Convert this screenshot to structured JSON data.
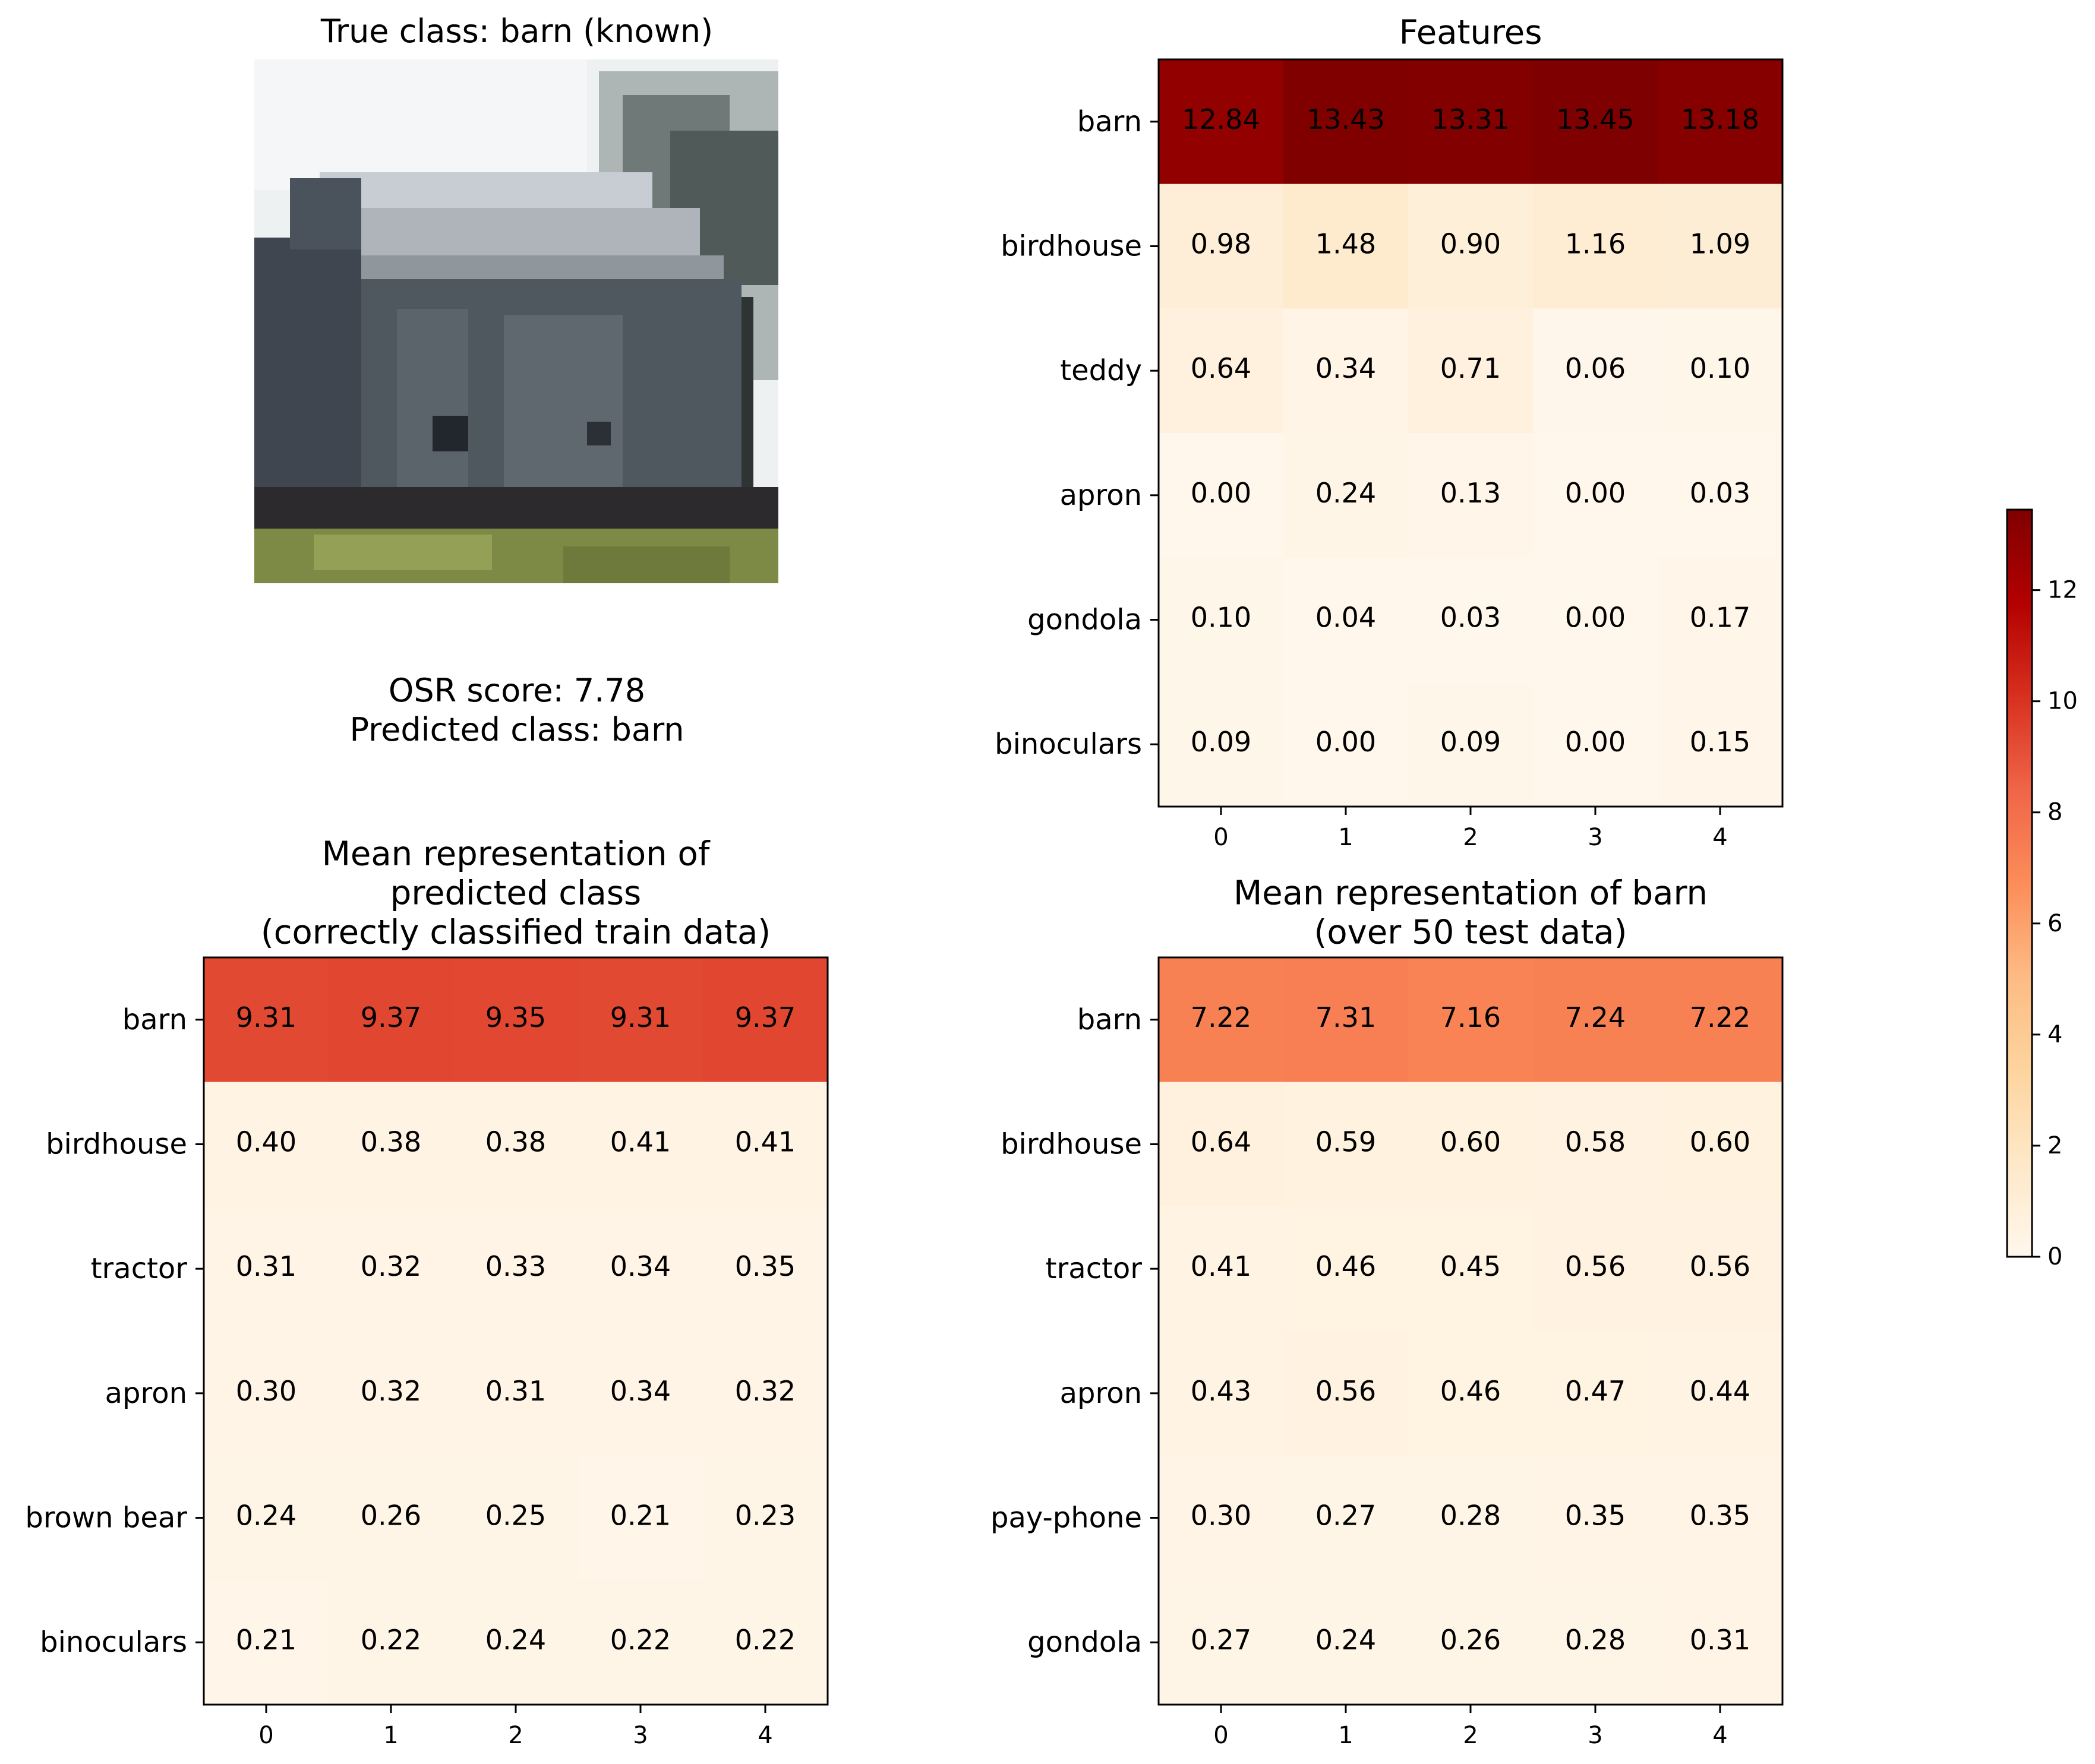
{
  "image_panel": {
    "title": "True class: barn (known)",
    "osr_line": "OSR score: 7.78",
    "pred_line": "Predicted class: barn"
  },
  "colormap": "OrRd",
  "colorbar": {
    "range": [
      0,
      13.45
    ],
    "ticks": [
      0,
      2,
      4,
      6,
      8,
      10,
      12
    ]
  },
  "chart_data": [
    {
      "type": "heatmap",
      "title": "Features",
      "x": [
        "0",
        "1",
        "2",
        "3",
        "4"
      ],
      "y": [
        "barn",
        "birdhouse",
        "teddy",
        "apron",
        "gondola",
        "binoculars"
      ],
      "values": [
        [
          12.84,
          13.43,
          13.31,
          13.45,
          13.18
        ],
        [
          0.98,
          1.48,
          0.9,
          1.16,
          1.09
        ],
        [
          0.64,
          0.34,
          0.71,
          0.06,
          0.1
        ],
        [
          0.0,
          0.24,
          0.13,
          0.0,
          0.03
        ],
        [
          0.1,
          0.04,
          0.03,
          0.0,
          0.17
        ],
        [
          0.09,
          0.0,
          0.09,
          0.0,
          0.15
        ]
      ]
    },
    {
      "type": "heatmap",
      "title": "Mean representation of\npredicted class\n(correctly classified train data)",
      "x": [
        "0",
        "1",
        "2",
        "3",
        "4"
      ],
      "y": [
        "barn",
        "birdhouse",
        "tractor",
        "apron",
        "brown bear",
        "binoculars"
      ],
      "values": [
        [
          9.31,
          9.37,
          9.35,
          9.31,
          9.37
        ],
        [
          0.4,
          0.38,
          0.38,
          0.41,
          0.41
        ],
        [
          0.31,
          0.32,
          0.33,
          0.34,
          0.35
        ],
        [
          0.3,
          0.32,
          0.31,
          0.34,
          0.32
        ],
        [
          0.24,
          0.26,
          0.25,
          0.21,
          0.23
        ],
        [
          0.21,
          0.22,
          0.24,
          0.22,
          0.22
        ]
      ]
    },
    {
      "type": "heatmap",
      "title": "Mean representation of barn\n(over 50 test data)",
      "x": [
        "0",
        "1",
        "2",
        "3",
        "4"
      ],
      "y": [
        "barn",
        "birdhouse",
        "tractor",
        "apron",
        "pay-phone",
        "gondola"
      ],
      "values": [
        [
          7.22,
          7.31,
          7.16,
          7.24,
          7.22
        ],
        [
          0.64,
          0.59,
          0.6,
          0.58,
          0.6
        ],
        [
          0.41,
          0.46,
          0.45,
          0.56,
          0.56
        ],
        [
          0.43,
          0.56,
          0.46,
          0.47,
          0.44
        ],
        [
          0.3,
          0.27,
          0.28,
          0.35,
          0.35
        ],
        [
          0.27,
          0.24,
          0.26,
          0.28,
          0.31
        ]
      ]
    }
  ]
}
